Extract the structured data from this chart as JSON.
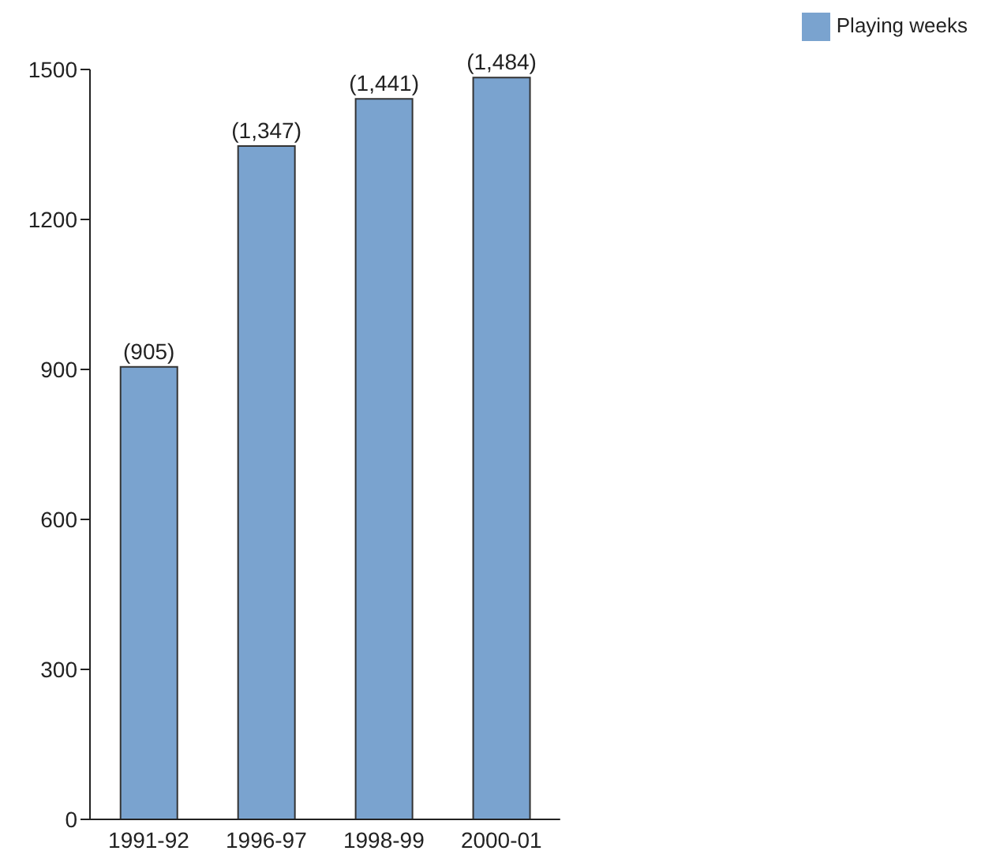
{
  "chart_data": {
    "type": "bar",
    "categories": [
      "1991-92",
      "1996-97",
      "1998-99",
      "2000-01"
    ],
    "series": [
      {
        "name": "Playing weeks",
        "color": "#7aa3cf",
        "values": [
          905,
          1347,
          1441,
          1484
        ],
        "value_labels": [
          "(905)",
          "(1,347)",
          "(1,441)",
          "(1,484)"
        ]
      }
    ],
    "ylim": [
      0,
      1500
    ],
    "yticks": [
      0,
      300,
      600,
      900,
      1200,
      1500
    ],
    "grid": false,
    "legend": "top right"
  }
}
